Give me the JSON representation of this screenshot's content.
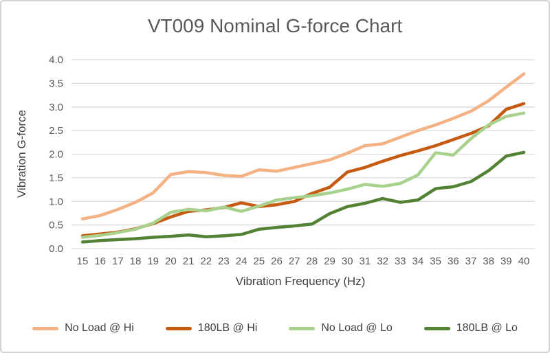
{
  "chart_data": {
    "type": "line",
    "title": "VT009 Nominal G-force Chart",
    "xlabel": "Vibration Frequency (Hz)",
    "ylabel": "Vibration G-force",
    "x": [
      15,
      16,
      17,
      18,
      19,
      20,
      21,
      22,
      23,
      24,
      25,
      26,
      27,
      28,
      29,
      30,
      31,
      32,
      33,
      34,
      35,
      36,
      37,
      38,
      39,
      40
    ],
    "ylim": [
      0.0,
      4.0
    ],
    "ytick_step": 0.5,
    "grid": true,
    "legend_position": "bottom",
    "series": [
      {
        "name": "No Load @ Hi",
        "color": "#F4B183",
        "values": [
          0.63,
          0.7,
          0.83,
          0.98,
          1.18,
          1.57,
          1.63,
          1.61,
          1.55,
          1.53,
          1.67,
          1.64,
          1.72,
          1.8,
          1.88,
          2.02,
          2.18,
          2.22,
          2.36,
          2.5,
          2.62,
          2.76,
          2.91,
          3.13,
          3.42,
          3.7
        ]
      },
      {
        "name": "180LB @ Hi",
        "color": "#C55A11",
        "values": [
          0.27,
          0.31,
          0.35,
          0.42,
          0.53,
          0.67,
          0.79,
          0.82,
          0.87,
          0.97,
          0.89,
          0.93,
          1.0,
          1.17,
          1.3,
          1.62,
          1.72,
          1.85,
          1.97,
          2.07,
          2.18,
          2.31,
          2.44,
          2.6,
          2.95,
          3.07
        ]
      },
      {
        "name": "No Load @ Lo",
        "color": "#A9D18E",
        "values": [
          0.24,
          0.28,
          0.34,
          0.41,
          0.54,
          0.77,
          0.83,
          0.8,
          0.88,
          0.79,
          0.9,
          1.03,
          1.08,
          1.12,
          1.18,
          1.26,
          1.36,
          1.32,
          1.38,
          1.56,
          2.03,
          1.98,
          2.33,
          2.62,
          2.8,
          2.87
        ]
      },
      {
        "name": "180LB @ Lo",
        "color": "#548235",
        "values": [
          0.14,
          0.17,
          0.19,
          0.21,
          0.24,
          0.26,
          0.29,
          0.25,
          0.27,
          0.3,
          0.41,
          0.45,
          0.48,
          0.52,
          0.74,
          0.89,
          0.96,
          1.06,
          0.98,
          1.03,
          1.27,
          1.31,
          1.42,
          1.65,
          1.96,
          2.04
        ]
      }
    ],
    "colors": {
      "grid": "#D9D9D9",
      "title_text": "#595959",
      "tick_text": "#595959",
      "axis_title_text": "#404040",
      "legend_text": "#404040",
      "frame_border": "#D2D2D2"
    }
  }
}
